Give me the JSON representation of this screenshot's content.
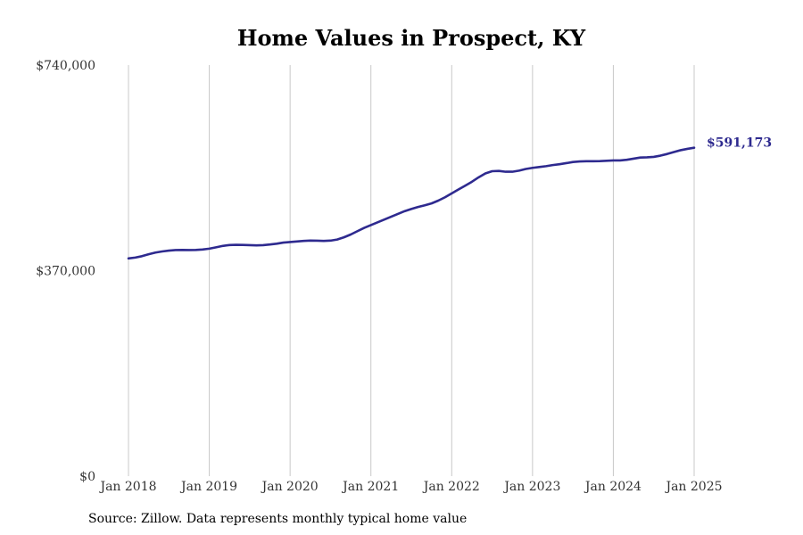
{
  "chart_data": {
    "type": "line",
    "title": "Home Values in Prospect, KY",
    "xlabel": "",
    "ylabel": "",
    "x_ticks": [
      "Jan 2018",
      "Jan 2019",
      "Jan 2020",
      "Jan 2021",
      "Jan 2022",
      "Jan 2023",
      "Jan 2024",
      "Jan 2025"
    ],
    "y_ticks": [
      {
        "value": 0,
        "label": "$0"
      },
      {
        "value": 370000,
        "label": "$370,000"
      },
      {
        "value": 740000,
        "label": "$740,000"
      }
    ],
    "ylim": [
      0,
      740000
    ],
    "xlim": [
      "2018-01",
      "2025-01"
    ],
    "grid": "vertical",
    "line_color": "#2e2a8f",
    "end_label": "$591,173",
    "series": [
      {
        "points": [
          [
            "2018-01",
            392000
          ],
          [
            "2018-02",
            393500
          ],
          [
            "2018-03",
            396000
          ],
          [
            "2018-04",
            399500
          ],
          [
            "2018-05",
            402500
          ],
          [
            "2018-06",
            404500
          ],
          [
            "2018-07",
            406000
          ],
          [
            "2018-08",
            407000
          ],
          [
            "2018-09",
            407200
          ],
          [
            "2018-10",
            407000
          ],
          [
            "2018-11",
            407200
          ],
          [
            "2018-12",
            408000
          ],
          [
            "2019-01",
            409500
          ],
          [
            "2019-02",
            412000
          ],
          [
            "2019-03",
            414500
          ],
          [
            "2019-04",
            416000
          ],
          [
            "2019-05",
            416500
          ],
          [
            "2019-06",
            416200
          ],
          [
            "2019-07",
            415800
          ],
          [
            "2019-08",
            415500
          ],
          [
            "2019-09",
            415800
          ],
          [
            "2019-10",
            417000
          ],
          [
            "2019-11",
            418500
          ],
          [
            "2019-12",
            420500
          ],
          [
            "2020-01",
            421500
          ],
          [
            "2020-02",
            422500
          ],
          [
            "2020-03",
            423500
          ],
          [
            "2020-04",
            424000
          ],
          [
            "2020-05",
            423800
          ],
          [
            "2020-06",
            423500
          ],
          [
            "2020-07",
            424000
          ],
          [
            "2020-08",
            426000
          ],
          [
            "2020-09",
            430000
          ],
          [
            "2020-10",
            435000
          ],
          [
            "2020-11",
            441000
          ],
          [
            "2020-12",
            447000
          ],
          [
            "2021-01",
            452000
          ],
          [
            "2021-02",
            457000
          ],
          [
            "2021-03",
            462000
          ],
          [
            "2021-04",
            467000
          ],
          [
            "2021-05",
            472000
          ],
          [
            "2021-06",
            477000
          ],
          [
            "2021-07",
            481000
          ],
          [
            "2021-08",
            484500
          ],
          [
            "2021-09",
            487500
          ],
          [
            "2021-10",
            491000
          ],
          [
            "2021-11",
            496000
          ],
          [
            "2021-12",
            502000
          ],
          [
            "2022-01",
            509000
          ],
          [
            "2022-02",
            516000
          ],
          [
            "2022-03",
            523000
          ],
          [
            "2022-04",
            530000
          ],
          [
            "2022-05",
            538000
          ],
          [
            "2022-06",
            545000
          ],
          [
            "2022-07",
            549000
          ],
          [
            "2022-08",
            549500
          ],
          [
            "2022-09",
            548000
          ],
          [
            "2022-10",
            548000
          ],
          [
            "2022-11",
            550000
          ],
          [
            "2022-12",
            553000
          ],
          [
            "2023-01",
            555000
          ],
          [
            "2023-02",
            556500
          ],
          [
            "2023-03",
            558000
          ],
          [
            "2023-04",
            560000
          ],
          [
            "2023-05",
            561500
          ],
          [
            "2023-06",
            563500
          ],
          [
            "2023-07",
            565500
          ],
          [
            "2023-08",
            566500
          ],
          [
            "2023-09",
            567000
          ],
          [
            "2023-10",
            567000
          ],
          [
            "2023-11",
            567200
          ],
          [
            "2023-12",
            567800
          ],
          [
            "2024-01",
            568300
          ],
          [
            "2024-02",
            568300
          ],
          [
            "2024-03",
            569500
          ],
          [
            "2024-04",
            571500
          ],
          [
            "2024-05",
            573500
          ],
          [
            "2024-06",
            574000
          ],
          [
            "2024-07",
            574800
          ],
          [
            "2024-08",
            577000
          ],
          [
            "2024-09",
            580000
          ],
          [
            "2024-10",
            583500
          ],
          [
            "2024-11",
            586800
          ],
          [
            "2024-12",
            589200
          ],
          [
            "2025-01",
            591173
          ]
        ]
      }
    ]
  },
  "source": "Source: Zillow. Data represents monthly typical home value"
}
